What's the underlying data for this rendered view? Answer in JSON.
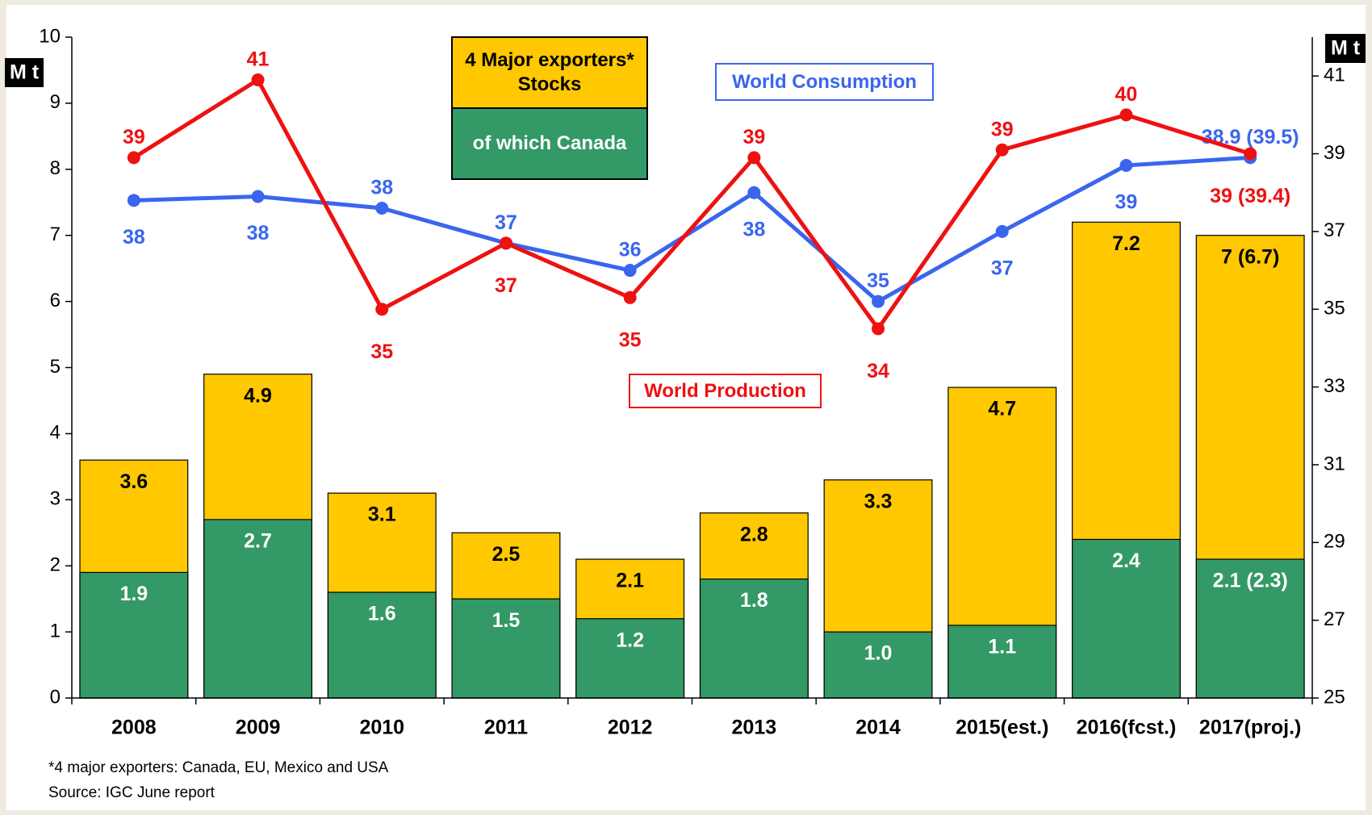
{
  "chart_data": {
    "type": "bar_line",
    "y_label": "M t",
    "y2_label": "M t",
    "categories": [
      "2008",
      "2009",
      "2010",
      "2011",
      "2012",
      "2013",
      "2014",
      "2015(est.)",
      "2016(fcst.)",
      "2017(proj.)"
    ],
    "series": [
      {
        "name": "4 Major exporters* Stocks",
        "type": "bar",
        "color": "#ffc800",
        "values": [
          3.6,
          4.9,
          3.1,
          2.5,
          2.1,
          2.8,
          3.3,
          4.7,
          7.2,
          7
        ],
        "value_labels": [
          "3.6",
          "4.9",
          "3.1",
          "2.5",
          "2.1",
          "2.8",
          "3.3",
          "4.7",
          "7.2",
          "7 (6.7)"
        ]
      },
      {
        "name": "of which Canada",
        "type": "bar",
        "color": "#339966",
        "values": [
          1.9,
          2.7,
          1.6,
          1.5,
          1.2,
          1.8,
          1.0,
          1.1,
          2.4,
          2.1
        ],
        "value_labels": [
          "1.9",
          "2.7",
          "1.6",
          "1.5",
          "1.2",
          "1.8",
          "1.0",
          "1.1",
          "2.4",
          "2.1 (2.3)"
        ]
      },
      {
        "name": "World Consumption",
        "type": "line",
        "axis": "y2",
        "color": "#3a66ee",
        "values": [
          37.8,
          37.9,
          37.6,
          36.7,
          36.0,
          38.0,
          35.2,
          37.0,
          38.7,
          38.9
        ],
        "value_labels": [
          "38",
          "38",
          "38",
          "37",
          "36",
          "38",
          "35",
          "37",
          "39",
          "38.9 (39.5)"
        ]
      },
      {
        "name": "World Production",
        "type": "line",
        "axis": "y2",
        "color": "#ee1111",
        "values": [
          38.9,
          40.9,
          35.0,
          36.7,
          35.3,
          38.9,
          34.5,
          39.1,
          40.0,
          39.0
        ],
        "value_labels": [
          "39",
          "41",
          "35",
          "37",
          "35",
          "39",
          "34",
          "39",
          "40",
          "39 (39.4)"
        ]
      }
    ],
    "ylim": [
      0,
      10
    ],
    "yticks": [
      0,
      1,
      2,
      3,
      4,
      5,
      6,
      7,
      8,
      9,
      10
    ],
    "y2lim": [
      25,
      42
    ],
    "y2ticks": [
      25,
      27,
      29,
      31,
      33,
      35,
      37,
      39,
      41
    ],
    "footnotes": [
      "*4 major exporters: Canada, EU, Mexico and USA",
      "Source: IGC June report"
    ]
  }
}
